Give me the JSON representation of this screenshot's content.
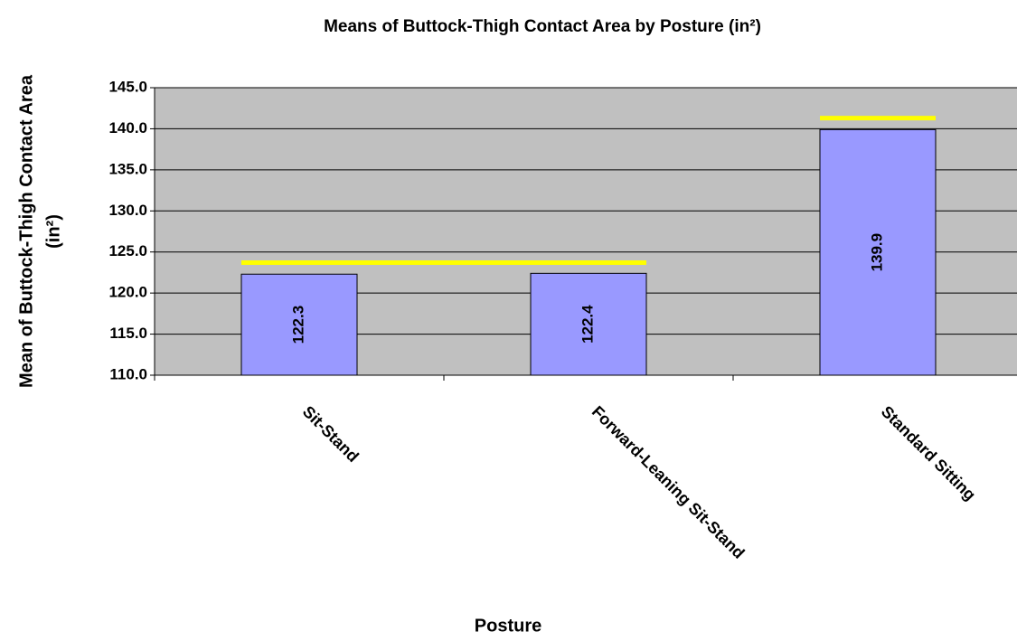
{
  "chart_data": {
    "type": "bar",
    "title": "Means of Buttock-Thigh Contact Area by Posture (in²)",
    "x_label": "Posture",
    "y_label": [
      "Mean of Buttock-Thigh Contact Area",
      "(in²)"
    ],
    "categories": [
      "Sit-Stand",
      "Forward-Leaning Sit-Stand",
      "Standard Sitting"
    ],
    "values": [
      122.3,
      122.4,
      139.9
    ],
    "color": "#9999ff",
    "plot_background": "#c0c0c0",
    "ylim": [
      110,
      145
    ],
    "yticks": [
      {
        "value": 110,
        "label": "110.0"
      },
      {
        "value": 115,
        "label": "115.0"
      },
      {
        "value": 120,
        "label": "120.0"
      },
      {
        "value": 125,
        "label": "125.0"
      },
      {
        "value": 130,
        "label": "130.0"
      },
      {
        "value": 135,
        "label": "135.0"
      },
      {
        "value": 140,
        "label": "140.0"
      },
      {
        "value": 145,
        "label": "145.0"
      }
    ],
    "grid": true,
    "group_lines": {
      "color": "#ffff00",
      "lines": [
        {
          "value": 123.7,
          "from": 0,
          "to": 1
        },
        {
          "value": 141.3,
          "from": 2,
          "to": 2
        }
      ]
    }
  }
}
